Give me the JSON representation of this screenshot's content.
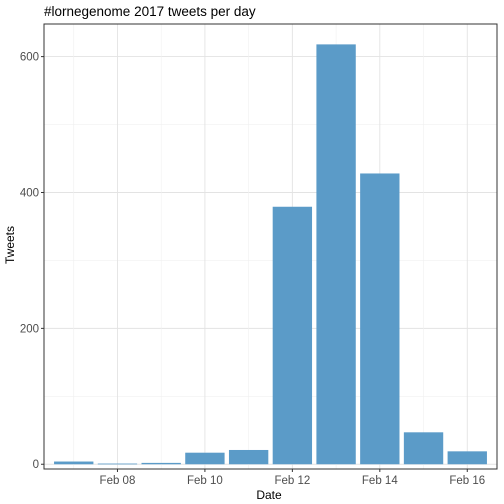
{
  "chart_data": {
    "type": "bar",
    "title": "#lornegenome 2017 tweets per day",
    "xlabel": "Date",
    "ylabel": "Tweets",
    "ylim": [
      -7,
      648
    ],
    "x_ticks": [
      "Feb 08",
      "Feb 10",
      "Feb 12",
      "Feb 14",
      "Feb 16"
    ],
    "y_ticks": [
      0,
      200,
      400,
      600
    ],
    "grid": true,
    "legend": "none",
    "bar_color": "#5b9bc8",
    "series": [
      {
        "categories": [
          "Feb 07",
          "Feb 08",
          "Feb 09",
          "Feb 10",
          "Feb 11",
          "Feb 12",
          "Feb 13",
          "Feb 14",
          "Feb 15",
          "Feb 16"
        ],
        "values": [
          4,
          1,
          2,
          17,
          21,
          379,
          618,
          428,
          47,
          19
        ]
      }
    ]
  }
}
